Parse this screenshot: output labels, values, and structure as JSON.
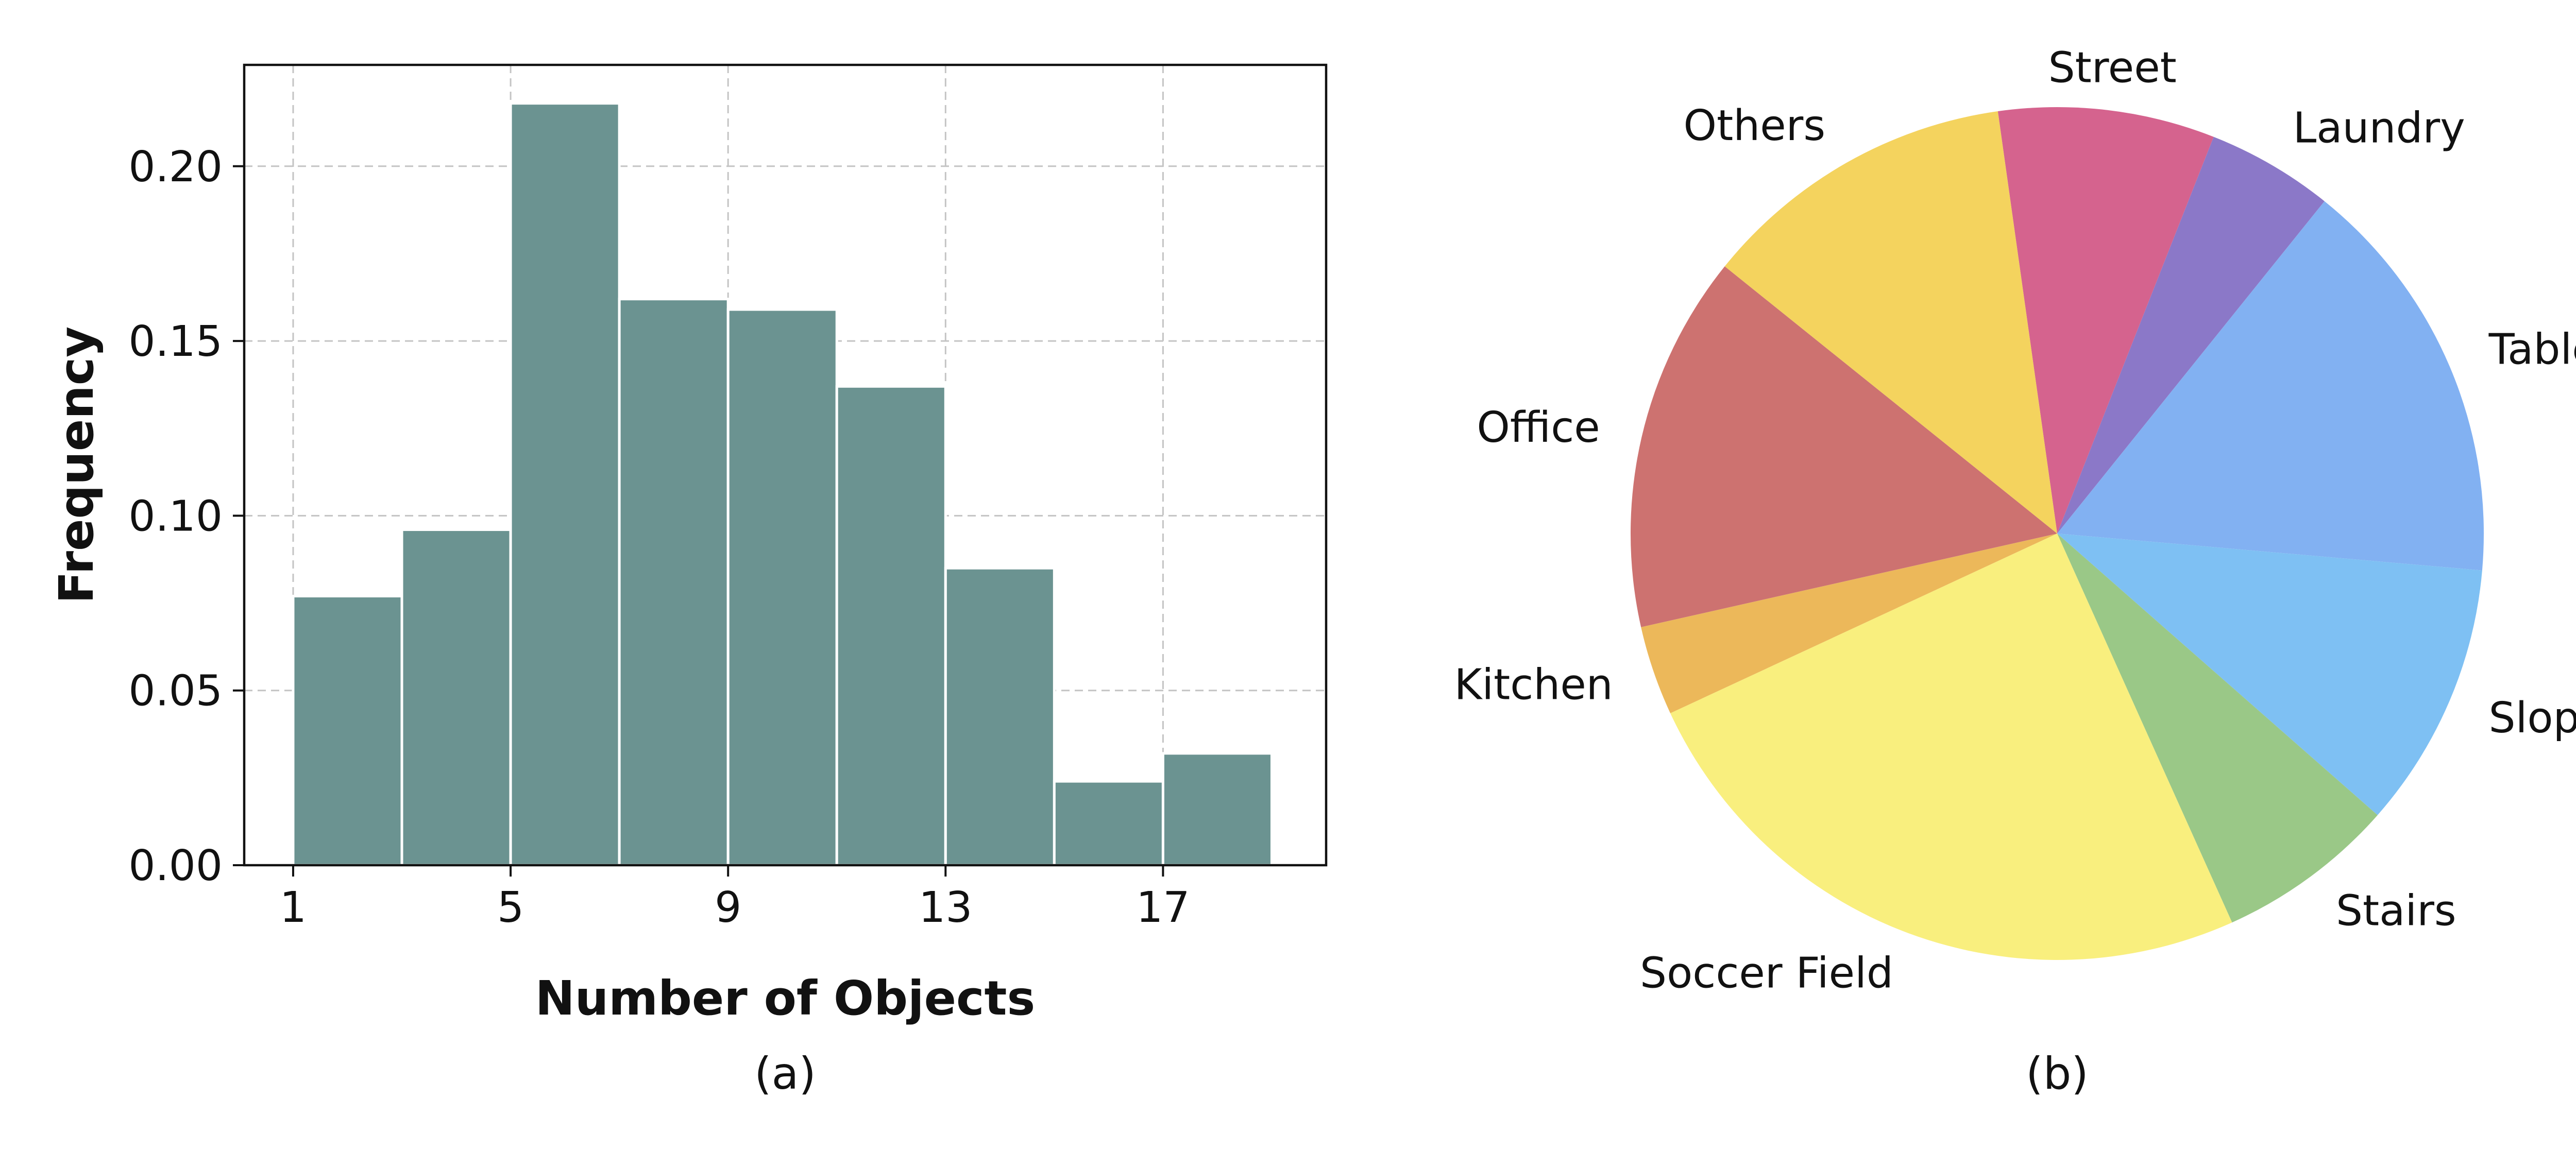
{
  "chart_data": [
    {
      "type": "bar",
      "panel_label": "(a)",
      "xlabel": "Number of Objects",
      "ylabel": "Frequency",
      "bin_edges": [
        1,
        3,
        5,
        7,
        9,
        11,
        13,
        15,
        17,
        19
      ],
      "values": [
        0.077,
        0.096,
        0.218,
        0.162,
        0.159,
        0.137,
        0.085,
        0.024,
        0.032
      ],
      "xticks": [
        "1",
        "5",
        "9",
        "13",
        "17"
      ],
      "xtick_values": [
        1,
        5,
        9,
        13,
        17
      ],
      "yticks": [
        "0.00",
        "0.05",
        "0.10",
        "0.15",
        "0.20"
      ],
      "ytick_values": [
        0,
        0.05,
        0.1,
        0.15,
        0.2
      ],
      "xlim": [
        0.1,
        20.0
      ],
      "ylim": [
        0,
        0.229
      ],
      "grid": true,
      "color": "#6b9391"
    },
    {
      "type": "pie",
      "panel_label": "(b)",
      "start_angle_deg": 98,
      "direction": "clockwise",
      "slices": [
        {
          "label": "Street",
          "value": 8.2,
          "color": "#d5638e"
        },
        {
          "label": "Laundry",
          "value": 4.8,
          "color": "#8b78c8"
        },
        {
          "label": "Table",
          "value": 15.6,
          "color": "#82b1f2"
        },
        {
          "label": "Slope",
          "value": 10.1,
          "color": "#7ec0f3"
        },
        {
          "label": "Stairs",
          "value": 6.8,
          "color": "#9ac887"
        },
        {
          "label": "Soccer Field",
          "value": 24.8,
          "color": "#f9ef7e"
        },
        {
          "label": "Kitchen",
          "value": 3.4,
          "color": "#ecb85a"
        },
        {
          "label": "Office",
          "value": 14.3,
          "color": "#cd7270"
        },
        {
          "label": "Others",
          "value": 12.0,
          "color": "#f4d35e"
        }
      ]
    }
  ]
}
